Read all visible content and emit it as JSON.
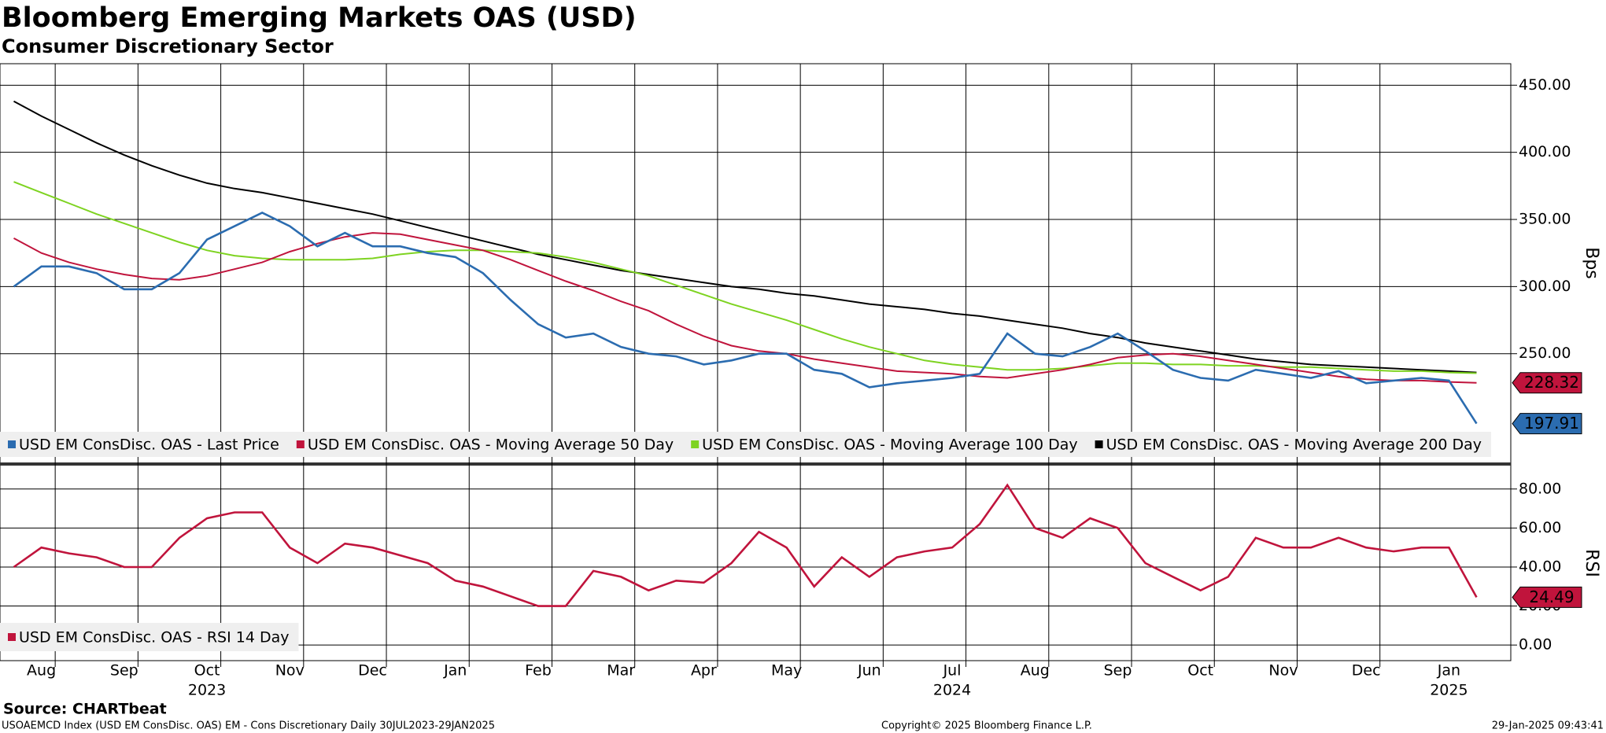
{
  "chart_data": [
    {
      "type": "line",
      "title": "Bloomberg Emerging Markets OAS (USD)",
      "subtitle": "Consumer Discretionary Sector",
      "categories": [
        "Aug",
        null,
        null,
        "Sep",
        null,
        null,
        "Oct",
        null,
        null,
        "Nov",
        null,
        null,
        "Dec",
        null,
        null,
        "Jan",
        null,
        null,
        "Feb",
        null,
        null,
        "Mar",
        null,
        null,
        "Apr",
        null,
        null,
        "May",
        null,
        null,
        "Jun",
        null,
        null,
        "Jul",
        null,
        null,
        "Aug",
        null,
        null,
        "Sep",
        null,
        null,
        "Oct",
        null,
        null,
        "Nov",
        null,
        null,
        "Dec",
        null,
        null,
        "Jan",
        null,
        null
      ],
      "years": [
        null,
        null,
        null,
        null,
        null,
        null,
        null,
        "2023",
        null,
        null,
        null,
        null,
        null,
        null,
        null,
        null,
        null,
        null,
        null,
        null,
        null,
        null,
        null,
        null,
        null,
        null,
        null,
        null,
        null,
        null,
        null,
        null,
        null,
        null,
        "2024",
        null,
        null,
        null,
        null,
        null,
        null,
        null,
        null,
        null,
        null,
        null,
        null,
        null,
        null,
        null,
        null,
        null,
        "2025",
        null
      ],
      "ylabel": "Bps",
      "ylim": [
        169,
        466
      ],
      "yticks": [
        {
          "value": 250,
          "label": "250.00"
        },
        {
          "value": 300,
          "label": "300.00"
        },
        {
          "value": 350,
          "label": "350.00"
        },
        {
          "value": 400,
          "label": "400.00"
        },
        {
          "value": 450,
          "label": "450.00"
        }
      ],
      "grid": true,
      "legend": "bottom-left",
      "series": [
        {
          "name": "USD EM ConsDisc. OAS - Last Price",
          "color": "#2b6cb0",
          "last_label": "197.91",
          "values": [
            300,
            315,
            315,
            310,
            298,
            298,
            310,
            335,
            345,
            355,
            345,
            330,
            340,
            330,
            330,
            325,
            322,
            310,
            290,
            272,
            262,
            265,
            255,
            250,
            248,
            242,
            245,
            250,
            250,
            238,
            235,
            225,
            228,
            230,
            232,
            235,
            265,
            250,
            248,
            255,
            265,
            252,
            238,
            232,
            230,
            238,
            235,
            232,
            237,
            228,
            230,
            232,
            230,
            197.91
          ]
        },
        {
          "name": "USD EM ConsDisc. OAS - Moving Average 50 Day",
          "color": "#c0143c",
          "last_label": "228.32",
          "values": [
            336,
            325,
            318,
            313,
            309,
            306,
            305,
            308,
            313,
            318,
            326,
            332,
            337,
            340,
            339,
            335,
            331,
            327,
            320,
            312,
            304,
            297,
            289,
            282,
            272,
            263,
            256,
            252,
            250,
            246,
            243,
            240,
            237,
            236,
            235,
            233,
            232,
            235,
            238,
            242,
            247,
            249,
            250,
            248,
            245,
            242,
            239,
            236,
            233,
            231,
            230,
            230,
            229,
            228.32
          ]
        },
        {
          "name": "USD EM ConsDisc. OAS - Moving Average 100 Day",
          "color": "#7ed321",
          "values": [
            378,
            370,
            362,
            354,
            347,
            340,
            333,
            327,
            323,
            321,
            320,
            320,
            320,
            321,
            324,
            326,
            327,
            327,
            326,
            325,
            322,
            318,
            313,
            308,
            301,
            294,
            287,
            281,
            275,
            268,
            261,
            255,
            250,
            245,
            242,
            240,
            238,
            238,
            239,
            241,
            243,
            243,
            242,
            242,
            241,
            241,
            240,
            240,
            239,
            238,
            237,
            237,
            236,
            235.5
          ]
        },
        {
          "name": "USD EM ConsDisc. OAS - Moving Average 200 Day",
          "color": "#000000",
          "values": [
            438,
            427,
            417,
            407,
            398,
            390,
            383,
            377,
            373,
            370,
            366,
            362,
            358,
            354,
            349,
            344,
            339,
            334,
            329,
            324,
            320,
            316,
            312,
            309,
            306,
            303,
            300,
            298,
            295,
            293,
            290,
            287,
            285,
            283,
            280,
            278,
            275,
            272,
            269,
            265,
            262,
            258,
            255,
            252,
            249,
            246,
            244,
            242,
            241,
            240,
            239,
            238,
            237,
            236
          ]
        }
      ]
    },
    {
      "type": "line",
      "ylabel": "RSI",
      "ylim": [
        -8,
        92
      ],
      "yticks": [
        {
          "value": 0,
          "label": "0.00"
        },
        {
          "value": 20,
          "label": "20.00"
        },
        {
          "value": 40,
          "label": "40.00"
        },
        {
          "value": 60,
          "label": "60.00"
        },
        {
          "value": 80,
          "label": "80.00"
        }
      ],
      "grid": true,
      "legend": "bottom-left",
      "series": [
        {
          "name": "USD EM ConsDisc. OAS - RSI 14 Day",
          "color": "#c0143c",
          "last_label": "24.49",
          "values": [
            40,
            50,
            47,
            45,
            40,
            40,
            55,
            65,
            68,
            68,
            50,
            42,
            52,
            50,
            46,
            42,
            33,
            30,
            25,
            20,
            20,
            38,
            35,
            28,
            33,
            32,
            42,
            58,
            50,
            30,
            45,
            35,
            45,
            48,
            50,
            62,
            82,
            60,
            55,
            65,
            60,
            42,
            35,
            28,
            35,
            55,
            50,
            50,
            55,
            50,
            48,
            50,
            50,
            24.49
          ]
        }
      ]
    }
  ],
  "footer": {
    "source": "Source: CHARTbeat",
    "description": "USOAEMCD Index (USD EM ConsDisc. OAS) EM - Cons Discretionary  Daily 30JUL2023-29JAN2025",
    "copyright": "Copyright© 2025 Bloomberg Finance L.P.",
    "timestamp": "29-Jan-2025 09:43:41"
  }
}
